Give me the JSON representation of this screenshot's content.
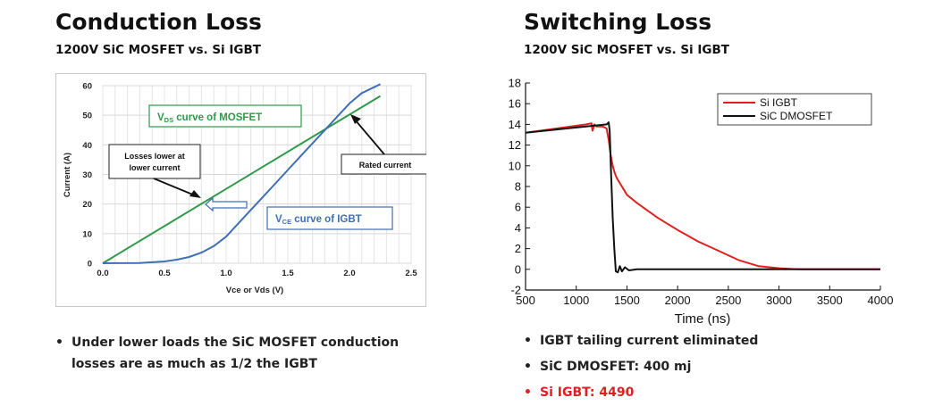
{
  "left_panel": {
    "title": "Conduction Loss",
    "subtitle": "1200V SiC MOSFET vs. Si IGBT",
    "bullets": [
      "Under lower loads the SiC MOSFET conduction",
      "losses are as much as 1/2 the IGBT"
    ]
  },
  "right_panel": {
    "title": "Switching Loss",
    "subtitle": "1200V SiC MOSFET vs. Si IGBT",
    "bullets": [
      {
        "text": "IGBT tailing current eliminated",
        "color": "#222222"
      },
      {
        "text": "SiC DMOSFET: 400 mj",
        "color": "#222222"
      },
      {
        "text": "Si IGBT: 4490",
        "color": "#e02020"
      }
    ]
  },
  "chart_data": [
    {
      "type": "line",
      "xlabel": "Vce or Vds (V)",
      "ylabel": "Current (A)",
      "xlim": [
        0,
        2.5
      ],
      "ylim": [
        0,
        60
      ],
      "xticks": [
        "0.0",
        "0.5",
        "1.0",
        "1.5",
        "2.0",
        "2.5"
      ],
      "yticks": [
        "0",
        "10",
        "20",
        "30",
        "40",
        "50",
        "60"
      ],
      "grid": true,
      "series": [
        {
          "color": "#2e9a4a",
          "x": [
            0,
            2.25
          ],
          "y": [
            0,
            56.5
          ]
        },
        {
          "color": "#3f6fb5",
          "x": [
            0,
            0.3,
            0.5,
            0.6,
            0.7,
            0.8,
            0.9,
            1.0,
            1.1,
            1.2,
            1.3,
            1.4,
            1.5,
            1.6,
            1.7,
            1.8,
            1.9,
            2.0,
            2.1,
            2.2,
            2.25
          ],
          "y": [
            0,
            0.1,
            0.6,
            1.2,
            2.1,
            3.6,
            5.8,
            9.0,
            13.5,
            18.0,
            22.5,
            27.0,
            31.5,
            36.0,
            40.5,
            45.0,
            49.5,
            54.0,
            57.5,
            59.5,
            60.5
          ]
        }
      ],
      "annotations": [
        {
          "label_main": "V",
          "label_sub": "DS",
          "label_rest": " curve of MOSFET",
          "color": "#2e9a4a"
        },
        {
          "label_main": "V",
          "label_sub": "CE",
          "label_rest": " curve of IGBT",
          "color": "#3f6fb5"
        },
        {
          "lines": [
            "Losses lower at",
            "lower current"
          ]
        },
        {
          "lines": [
            "Rated current"
          ]
        }
      ]
    },
    {
      "type": "line",
      "xlabel": "Time (ns)",
      "xlim": [
        500,
        4000
      ],
      "ylim": [
        -2,
        18
      ],
      "xticks": [
        "500",
        "1000",
        "1500",
        "2000",
        "2500",
        "3000",
        "3500",
        "4000"
      ],
      "yticks": [
        "-2",
        "0",
        "2",
        "4",
        "6",
        "8",
        "10",
        "12",
        "14",
        "16",
        "18"
      ],
      "grid": false,
      "legend": "top-right",
      "series": [
        {
          "name": "Si IGBT",
          "color": "#e02020",
          "x": [
            500,
            1100,
            1150,
            1160,
            1180,
            1200,
            1260,
            1300,
            1320,
            1340,
            1360,
            1380,
            1400,
            1450,
            1500,
            1600,
            1700,
            1800,
            1900,
            2000,
            2200,
            2400,
            2600,
            2800,
            3000,
            3200,
            3500,
            4000
          ],
          "y": [
            13.2,
            14.0,
            14.1,
            13.4,
            14.0,
            13.8,
            13.8,
            13.6,
            12.5,
            11.0,
            10.0,
            9.3,
            8.8,
            8.0,
            7.2,
            6.4,
            5.7,
            5.0,
            4.4,
            3.8,
            2.7,
            1.8,
            0.9,
            0.3,
            0.1,
            0.0,
            0.0,
            0.0
          ]
        },
        {
          "name": "SiC DMOSFET",
          "color": "#111111",
          "x": [
            500,
            1000,
            1300,
            1320,
            1330,
            1345,
            1360,
            1375,
            1390,
            1410,
            1430,
            1450,
            1480,
            1520,
            1600,
            1800,
            2500,
            3000,
            3500,
            4000
          ],
          "y": [
            13.2,
            13.7,
            14.0,
            14.2,
            13.4,
            9.0,
            5.0,
            2.0,
            -0.2,
            -0.3,
            0.3,
            -0.2,
            0.2,
            -0.1,
            0.0,
            0.0,
            0.0,
            0.0,
            0.0,
            0.0
          ]
        }
      ]
    }
  ]
}
